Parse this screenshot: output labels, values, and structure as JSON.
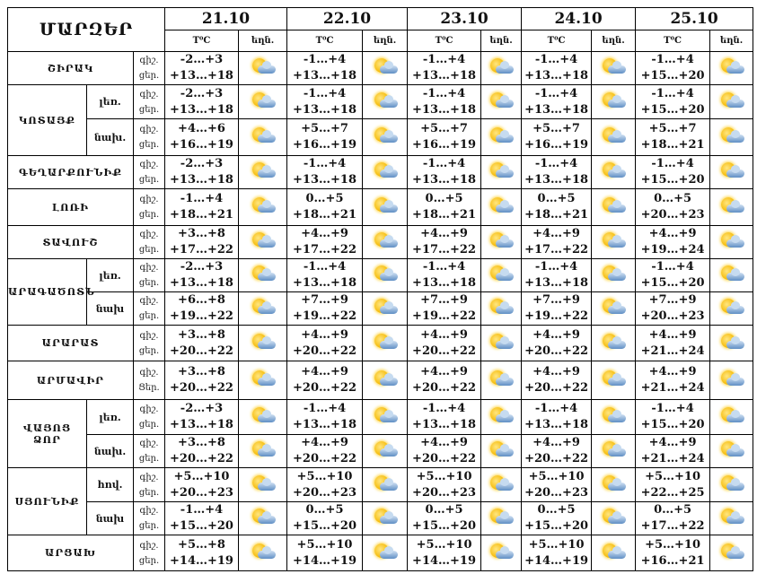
{
  "header": {
    "regions_title": "ՄԱՐԶԵՐ",
    "dates": [
      "21.10",
      "22.10",
      "23.10",
      "24.10",
      "25.10"
    ],
    "temp_label": "T⁰C",
    "weather_label": "եղն.",
    "weather_icon": "sun-behind-cloud-icon"
  },
  "regions": [
    {
      "name": "ՇԻՐԱԿ",
      "subs": [
        {
          "label": "",
          "night_label": "գիշ.",
          "day_label": "ցեր.",
          "days": [
            [
              "-2…+3",
              "+13…+18"
            ],
            [
              "-1…+4",
              "+13…+18"
            ],
            [
              "-1…+4",
              "+13…+18"
            ],
            [
              "-1…+4",
              "+13…+18"
            ],
            [
              "-1…+4",
              "+15…+20"
            ]
          ]
        }
      ]
    },
    {
      "name": "ԿՈՏԱՅՔ",
      "subs": [
        {
          "label": "լեռ.",
          "night_label": "գիշ.",
          "day_label": "ցեր.",
          "days": [
            [
              "-2…+3",
              "+13…+18"
            ],
            [
              "-1…+4",
              "+13…+18"
            ],
            [
              "-1…+4",
              "+13…+18"
            ],
            [
              "-1…+4",
              "+13…+18"
            ],
            [
              "-1…+4",
              "+15…+20"
            ]
          ]
        },
        {
          "label": "նախ.",
          "night_label": "գիշ.",
          "day_label": "ցեր.",
          "days": [
            [
              "+4…+6",
              "+16…+19"
            ],
            [
              "+5…+7",
              "+16…+19"
            ],
            [
              "+5…+7",
              "+16…+19"
            ],
            [
              "+5…+7",
              "+16…+19"
            ],
            [
              "+5…+7",
              "+18…+21"
            ]
          ]
        }
      ]
    },
    {
      "name": "ԳԵՂԱՐՔՈՒՆԻՔ",
      "subs": [
        {
          "label": "",
          "night_label": "գիշ.",
          "day_label": "ցեր.",
          "days": [
            [
              "-2…+3",
              "+13…+18"
            ],
            [
              "-1…+4",
              "+13…+18"
            ],
            [
              "-1…+4",
              "+13…+18"
            ],
            [
              "-1…+4",
              "+13…+18"
            ],
            [
              "-1…+4",
              "+15…+20"
            ]
          ]
        }
      ]
    },
    {
      "name": "ԼՈՌԻ",
      "subs": [
        {
          "label": "",
          "night_label": "գիշ.",
          "day_label": "ցեր.",
          "days": [
            [
              "-1…+4",
              "+18…+21"
            ],
            [
              "0…+5",
              "+18…+21"
            ],
            [
              "0…+5",
              "+18…+21"
            ],
            [
              "0…+5",
              "+18…+21"
            ],
            [
              "0…+5",
              "+20…+23"
            ]
          ]
        }
      ]
    },
    {
      "name": "ՏԱՎՈՒՇ",
      "subs": [
        {
          "label": "",
          "night_label": "գիշ.",
          "day_label": "ցեր.",
          "days": [
            [
              "+3…+8",
              "+17…+22"
            ],
            [
              "+4…+9",
              "+17…+22"
            ],
            [
              "+4…+9",
              "+17…+22"
            ],
            [
              "+4…+9",
              "+17…+22"
            ],
            [
              "+4…+9",
              "+19…+24"
            ]
          ]
        }
      ]
    },
    {
      "name": "ԱՐԱԳԱԾՈՏՆ",
      "subs": [
        {
          "label": "լեռ.",
          "night_label": "գիշ.",
          "day_label": "ցեր.",
          "days": [
            [
              "-2…+3",
              "+13…+18"
            ],
            [
              "-1…+4",
              "+13…+18"
            ],
            [
              "-1…+4",
              "+13…+18"
            ],
            [
              "-1…+4",
              "+13…+18"
            ],
            [
              "-1…+4",
              "+15…+20"
            ]
          ]
        },
        {
          "label": "նախ",
          "night_label": "գիշ.",
          "day_label": "ցեր.",
          "days": [
            [
              "+6…+8",
              "+19…+22"
            ],
            [
              "+7…+9",
              "+19…+22"
            ],
            [
              "+7…+9",
              "+19…+22"
            ],
            [
              "+7…+9",
              "+19…+22"
            ],
            [
              "+7…+9",
              "+20…+23"
            ]
          ]
        }
      ]
    },
    {
      "name": "ԱՐԱՐԱՏ",
      "subs": [
        {
          "label": "",
          "night_label": "գիշ.",
          "day_label": "ցեր.",
          "days": [
            [
              "+3…+8",
              "+20…+22"
            ],
            [
              "+4…+9",
              "+20…+22"
            ],
            [
              "+4…+9",
              "+20…+22"
            ],
            [
              "+4…+9",
              "+20…+22"
            ],
            [
              "+4…+9",
              "+21…+24"
            ]
          ]
        }
      ]
    },
    {
      "name": "ԱՐՄԱՎԻՐ",
      "subs": [
        {
          "label": "",
          "night_label": "գիշ.",
          "day_label": "Ցեր.",
          "days": [
            [
              "+3…+8",
              "+20…+22"
            ],
            [
              "+4…+9",
              "+20…+22"
            ],
            [
              "+4…+9",
              "+20…+22"
            ],
            [
              "+4…+9",
              "+20…+22"
            ],
            [
              "+4…+9",
              "+21…+24"
            ]
          ]
        }
      ]
    },
    {
      "name": "ՎԱՅՈՑ ՁՈՐ",
      "subs": [
        {
          "label": "լեռ.",
          "night_label": "գիշ.",
          "day_label": "ցեր.",
          "days": [
            [
              "-2…+3",
              "+13…+18"
            ],
            [
              "-1…+4",
              "+13…+18"
            ],
            [
              "-1…+4",
              "+13…+18"
            ],
            [
              "-1…+4",
              "+13…+18"
            ],
            [
              "-1…+4",
              "+15…+20"
            ]
          ]
        },
        {
          "label": "նախ.",
          "night_label": "գիշ.",
          "day_label": "ցեր.",
          "days": [
            [
              "+3…+8",
              "+20…+22"
            ],
            [
              "+4…+9",
              "+20…+22"
            ],
            [
              "+4…+9",
              "+20…+22"
            ],
            [
              "+4…+9",
              "+20…+22"
            ],
            [
              "+4…+9",
              "+21…+24"
            ]
          ]
        }
      ]
    },
    {
      "name": "ՍՅՈՒՆԻՔ",
      "subs": [
        {
          "label": "հով.",
          "night_label": "գիշ.",
          "day_label": "ցեր.",
          "days": [
            [
              "+5…+10",
              "+20…+23"
            ],
            [
              "+5…+10",
              "+20…+23"
            ],
            [
              "+5…+10",
              "+20…+23"
            ],
            [
              "+5…+10",
              "+20…+23"
            ],
            [
              "+5…+10",
              "+22…+25"
            ]
          ]
        },
        {
          "label": "նախ",
          "night_label": "գիշ.",
          "day_label": "ցեր.",
          "days": [
            [
              "-1…+4",
              "+15…+20"
            ],
            [
              "0…+5",
              "+15…+20"
            ],
            [
              "0…+5",
              "+15…+20"
            ],
            [
              "0…+5",
              "+15…+20"
            ],
            [
              "0…+5",
              "+17…+22"
            ]
          ]
        }
      ]
    },
    {
      "name": "ԱՐՑԱԽ",
      "subs": [
        {
          "label": "",
          "night_label": "գիշ.",
          "day_label": "ցեր.",
          "days": [
            [
              "+5…+8",
              "+14…+19"
            ],
            [
              "+5…+10",
              "+14…+19"
            ],
            [
              "+5…+10",
              "+14…+19"
            ],
            [
              "+5…+10",
              "+14…+19"
            ],
            [
              "+5…+10",
              "+16…+21"
            ]
          ]
        }
      ]
    }
  ]
}
